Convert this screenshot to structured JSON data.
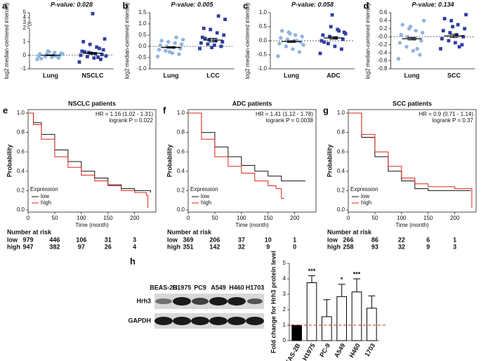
{
  "chart_data": [
    {
      "type": "dot",
      "panel": "a",
      "title": "P-value: 0.028",
      "ylabel": "log2 median-centered intensity",
      "ylim": [
        -1,
        5
      ],
      "axis_break": [
        2,
        3
      ],
      "yticks": [
        -1,
        0,
        1,
        2,
        3,
        4,
        5
      ],
      "reference_line": 0,
      "series": [
        {
          "name": "Lung",
          "color": "#8fb4df",
          "marker": "circle",
          "values": [
            -0.3,
            -0.2,
            -0.15,
            -0.1,
            -0.05,
            0,
            0,
            0.05,
            0.1,
            0.15,
            0.2,
            0.3,
            -0.25,
            0.1,
            -0.05,
            0.25
          ],
          "mean": 0,
          "sem": 0.03
        },
        {
          "name": "NSCLC",
          "color": "#2e3f9e",
          "marker": "square",
          "values": [
            -0.5,
            -0.3,
            -0.2,
            -0.1,
            0,
            0.05,
            0.1,
            0.2,
            0.3,
            0.4,
            0.6,
            0.8,
            1.0,
            1.2,
            -0.15,
            0.15,
            0.25,
            -0.05,
            0.5,
            4.8
          ],
          "mean": 0.15,
          "sem": 0.05
        }
      ]
    },
    {
      "type": "dot",
      "panel": "b",
      "title": "P-value: 0.005",
      "ylabel": "log2 median-centered intensity",
      "ylim": [
        -1,
        1.5
      ],
      "yticks": [
        {
          "value": -1,
          "label": "-1.0"
        },
        {
          "value": -0.5,
          "label": "-0.5"
        },
        {
          "value": 0,
          "label": "0.0"
        },
        {
          "value": 0.5,
          "label": "0.5"
        },
        {
          "value": 1,
          "label": "1.0"
        },
        {
          "value": 1.5,
          "label": "1.5"
        }
      ],
      "reference_line": 0,
      "series": [
        {
          "name": "Lung",
          "color": "#8fb4df",
          "marker": "circle",
          "values": [
            -0.45,
            -0.35,
            -0.3,
            -0.2,
            -0.15,
            -0.1,
            -0.05,
            0,
            0.05,
            0.1,
            0.15,
            0.2,
            0.25,
            0.3,
            0.4,
            -0.25
          ],
          "mean": -0.05,
          "sem": 0.03
        },
        {
          "name": "LCC",
          "color": "#2e3f9e",
          "marker": "square",
          "values": [
            -0.1,
            0,
            0.05,
            0.1,
            0.15,
            0.2,
            0.25,
            0.3,
            0.4,
            0.5,
            0.6,
            0.75,
            0.8,
            1.2,
            1.35,
            -0.05,
            0.35
          ],
          "mean": 0.28,
          "sem": 0.08
        }
      ]
    },
    {
      "type": "dot",
      "panel": "c",
      "title": "P-value: 0.058",
      "ylabel": "log2 median-centered intensity",
      "ylim": [
        -1,
        1
      ],
      "yticks": [
        {
          "value": -1,
          "label": "-1.0"
        },
        {
          "value": -0.5,
          "label": "-0.5"
        },
        {
          "value": 0,
          "label": "0.0"
        },
        {
          "value": 0.5,
          "label": "0.5"
        },
        {
          "value": 1,
          "label": "1.0"
        }
      ],
      "reference_line": 0,
      "series": [
        {
          "name": "Lung",
          "color": "#8fb4df",
          "marker": "circle",
          "values": [
            -0.55,
            -0.4,
            -0.3,
            -0.2,
            -0.1,
            -0.05,
            0,
            0.05,
            0.1,
            0.15,
            0.2,
            0.3,
            0.35,
            -0.15,
            0,
            0.25
          ],
          "mean": -0.03,
          "sem": 0.03
        },
        {
          "name": "ADC",
          "color": "#2e3f9e",
          "marker": "square",
          "values": [
            -0.45,
            -0.3,
            -0.2,
            -0.1,
            0,
            0.05,
            0.1,
            0.15,
            0.2,
            0.3,
            0.4,
            0.5,
            -0.05,
            0.25,
            0.35,
            0.92
          ],
          "mean": 0.1,
          "sem": 0.04
        }
      ]
    },
    {
      "type": "dot",
      "panel": "d",
      "title": "P-value: 0.134",
      "ylabel": "log2 median-centered intensity",
      "ylim": [
        -0.8,
        0.6
      ],
      "yticks": [
        {
          "value": -0.8,
          "label": "-0.8"
        },
        {
          "value": -0.6,
          "label": "-0.6"
        },
        {
          "value": -0.4,
          "label": "-0.4"
        },
        {
          "value": -0.2,
          "label": "-0.2"
        },
        {
          "value": 0,
          "label": "-0.0"
        },
        {
          "value": 0.2,
          "label": "0.2"
        },
        {
          "value": 0.4,
          "label": "0.4"
        },
        {
          "value": 0.6,
          "label": "0.6"
        }
      ],
      "reference_line": 0,
      "series": [
        {
          "name": "Lung",
          "color": "#8fb4df",
          "marker": "circle",
          "values": [
            -0.55,
            -0.45,
            -0.35,
            -0.25,
            -0.15,
            -0.1,
            -0.05,
            0,
            0.05,
            0.1,
            0.15,
            0.2,
            0.3,
            0.4,
            -0.3,
            0.25
          ],
          "mean": -0.05,
          "sem": 0.03
        },
        {
          "name": "SCC",
          "color": "#2e3f9e",
          "marker": "square",
          "values": [
            -0.3,
            -0.2,
            -0.15,
            -0.1,
            -0.05,
            0,
            0.05,
            0.1,
            0.15,
            0.2,
            0.3,
            0.4,
            0.45,
            0.55,
            -0.25,
            0.25
          ],
          "mean": 0.02,
          "sem": 0.04
        }
      ]
    },
    {
      "type": "km",
      "panel": "e",
      "title": "NSCLC patients",
      "hr": "HR = 1.16 (1.02 - 1.31)",
      "logrank": "logrank P = 0.022",
      "xlabel": "Time (month)",
      "ylabel": "Probability",
      "legend_title": "Expression",
      "risk_title": "Number at risk",
      "xlim": [
        0,
        240
      ],
      "xticks": [
        0,
        50,
        100,
        150,
        200
      ],
      "ylim": [
        0,
        1
      ],
      "yticks": [
        {
          "value": 0,
          "label": "0.0"
        },
        {
          "value": 0.2,
          "label": "0.2"
        },
        {
          "value": 0.4,
          "label": "0.4"
        },
        {
          "value": 0.6,
          "label": "0.6"
        },
        {
          "value": 0.8,
          "label": "0.8"
        },
        {
          "value": 1,
          "label": "1.0"
        }
      ],
      "series": [
        {
          "name": "low",
          "color": "#111111",
          "x": [
            0,
            10,
            25,
            50,
            75,
            100,
            125,
            150,
            175,
            200,
            230
          ],
          "values": [
            1,
            0.9,
            0.78,
            0.62,
            0.5,
            0.4,
            0.33,
            0.26,
            0.22,
            0.2,
            0.18
          ],
          "at_risk": [
            979,
            446,
            106,
            31,
            3
          ]
        },
        {
          "name": "high",
          "color": "#e0241b",
          "x": [
            0,
            10,
            25,
            50,
            75,
            100,
            125,
            150,
            175,
            200,
            222,
            225
          ],
          "values": [
            1,
            0.88,
            0.73,
            0.55,
            0.44,
            0.36,
            0.3,
            0.25,
            0.2,
            0.18,
            0.15,
            0.02
          ],
          "at_risk": [
            947,
            382,
            97,
            26,
            4
          ]
        }
      ]
    },
    {
      "type": "km",
      "panel": "f",
      "title": "ADC patients",
      "hr": "HR = 1.41 (1.12 - 1.78)",
      "logrank": "logrank P = 0.0038",
      "xlabel": "Time (month)",
      "ylabel": "Probability",
      "legend_title": "Expression",
      "risk_title": "Number at risk",
      "xlim": [
        0,
        240
      ],
      "xticks": [
        0,
        50,
        100,
        150,
        200
      ],
      "ylim": [
        0,
        1
      ],
      "yticks": [
        {
          "value": 0,
          "label": "0.0"
        },
        {
          "value": 0.2,
          "label": "0.2"
        },
        {
          "value": 0.4,
          "label": "0.4"
        },
        {
          "value": 0.6,
          "label": "0.6"
        },
        {
          "value": 0.8,
          "label": "0.8"
        },
        {
          "value": 1,
          "label": "1.0"
        }
      ],
      "series": [
        {
          "name": "low",
          "color": "#111111",
          "x": [
            0,
            25,
            50,
            75,
            100,
            125,
            150,
            175,
            200,
            220
          ],
          "values": [
            1,
            0.8,
            0.65,
            0.55,
            0.46,
            0.4,
            0.35,
            0.3,
            0.3,
            0.3
          ],
          "at_risk": [
            369,
            206,
            37,
            10,
            1
          ]
        },
        {
          "name": "high",
          "color": "#e0241b",
          "x": [
            0,
            25,
            50,
            75,
            100,
            125,
            150,
            165,
            175,
            180
          ],
          "values": [
            1,
            0.73,
            0.55,
            0.45,
            0.38,
            0.3,
            0.25,
            0.22,
            0.12,
            0.12
          ],
          "at_risk": [
            351,
            142,
            32,
            9,
            0
          ]
        }
      ]
    },
    {
      "type": "km",
      "panel": "g",
      "title": "SCC patients",
      "hr": "HR = 0.9 (0.71 - 1.14)",
      "logrank": "logrank P = 0.37",
      "xlabel": "Time (month)",
      "ylabel": "Probability",
      "legend_title": "Expression",
      "risk_title": "Number at risk",
      "xlim": [
        0,
        240
      ],
      "xticks": [
        0,
        50,
        100,
        150,
        200
      ],
      "ylim": [
        0,
        1
      ],
      "yticks": [
        {
          "value": 0,
          "label": "0.0"
        },
        {
          "value": 0.2,
          "label": "0.2"
        },
        {
          "value": 0.4,
          "label": "0.4"
        },
        {
          "value": 0.6,
          "label": "0.6"
        },
        {
          "value": 0.8,
          "label": "0.8"
        },
        {
          "value": 1,
          "label": "1.0"
        }
      ],
      "series": [
        {
          "name": "low",
          "color": "#111111",
          "x": [
            0,
            25,
            50,
            75,
            100,
            125,
            150,
            200,
            230
          ],
          "values": [
            1,
            0.75,
            0.55,
            0.4,
            0.3,
            0.22,
            0.2,
            0.2,
            0.2
          ],
          "at_risk": [
            266,
            86,
            22,
            6,
            1
          ]
        },
        {
          "name": "high",
          "color": "#e0241b",
          "x": [
            0,
            25,
            50,
            75,
            100,
            125,
            150,
            175,
            200,
            230,
            232
          ],
          "values": [
            1,
            0.78,
            0.6,
            0.45,
            0.33,
            0.27,
            0.24,
            0.24,
            0.22,
            0.22,
            0.02
          ],
          "at_risk": [
            258,
            93,
            32,
            9,
            3
          ]
        }
      ]
    },
    {
      "type": "bar",
      "panel": "h",
      "ylabel": "Fold change for Hrh3 protein level",
      "categories": [
        "BEAS-2B",
        "H1975",
        "PC-9",
        "A549",
        "H460",
        "1703"
      ],
      "values": [
        1,
        3.75,
        1.55,
        2.85,
        3.15,
        2.1
      ],
      "errors": [
        0,
        0.45,
        1.1,
        0.8,
        0.85,
        0.8
      ],
      "colors": [
        "#000000",
        "#ffffff",
        "#ffffff",
        "#ffffff",
        "#ffffff",
        "#ffffff"
      ],
      "significance": [
        null,
        "***",
        null,
        "*",
        "***",
        null
      ],
      "ylim": [
        0,
        5
      ],
      "yticks": [
        0,
        1,
        2,
        3,
        4,
        5
      ],
      "reference_line": 1
    }
  ],
  "blot": {
    "cell_lines": [
      "BEAS-2B",
      "H1975",
      "PC9",
      "A549",
      "H460",
      "H1703"
    ],
    "rows": [
      "Hrh3",
      "GAPDH"
    ]
  }
}
